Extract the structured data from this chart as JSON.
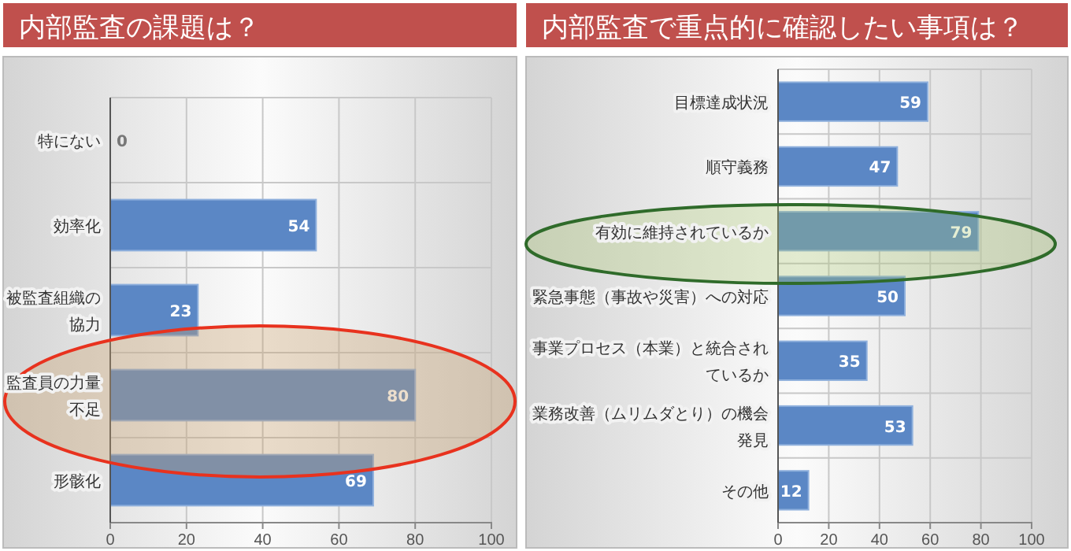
{
  "chart_data": [
    {
      "type": "bar",
      "orientation": "horizontal",
      "title": "内部監査の課題は？",
      "categories": [
        "特にない",
        "効率化",
        "被監査組織の協力",
        "監査員の力量不足",
        "形骸化"
      ],
      "values": [
        0,
        54,
        23,
        80,
        69
      ],
      "color": "#5b87c5",
      "xlim": [
        0,
        100
      ],
      "xticks": [
        0,
        20,
        40,
        60,
        80,
        100
      ],
      "grid": true,
      "data_labels": true
    },
    {
      "type": "bar",
      "orientation": "horizontal",
      "title": "内部監査で重点的に確認したい事項は？",
      "categories": [
        "目標達成状況",
        "順守義務",
        "有効に維持されているか",
        "緊急事態（事故や災害）への対応",
        "事業プロセス（本業）と統合されているか",
        "業務改善（ムリムダとり）の機会発見",
        "その他"
      ],
      "values": [
        59,
        47,
        79,
        50,
        35,
        53,
        12
      ],
      "color": "#5b87c5",
      "xlim": [
        0,
        100
      ],
      "xticks": [
        0,
        20,
        40,
        60,
        80,
        100
      ],
      "grid": true,
      "data_labels": true
    }
  ]
}
